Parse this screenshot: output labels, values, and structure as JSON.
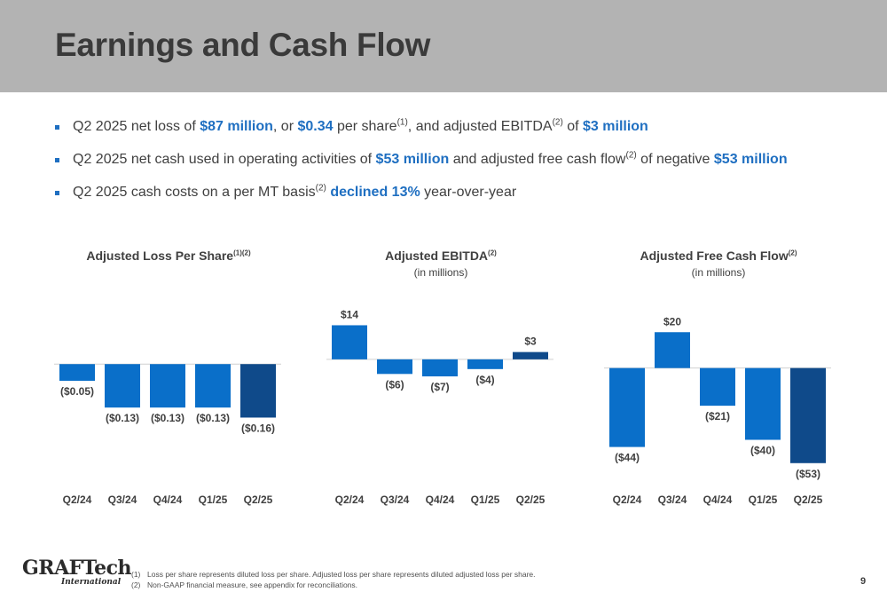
{
  "title": "Earnings and Cash Flow",
  "bullets": [
    {
      "parts": [
        {
          "t": "Q2 2025 net loss of "
        },
        {
          "t": "$87 million",
          "h": true
        },
        {
          "t": ", or "
        },
        {
          "t": "$0.34",
          "h": true
        },
        {
          "t": " per share"
        },
        {
          "t": "(1)",
          "sup": true
        },
        {
          "t": ", and adjusted EBITDA"
        },
        {
          "t": "(2)",
          "sup": true
        },
        {
          "t": " of "
        },
        {
          "t": "$3 million",
          "h": true
        }
      ]
    },
    {
      "parts": [
        {
          "t": "Q2 2025 net cash used in operating activities of "
        },
        {
          "t": "$53 million",
          "h": true
        },
        {
          "t": " and adjusted free cash flow"
        },
        {
          "t": "(2)",
          "sup": true
        },
        {
          "t": " of negative "
        },
        {
          "t": "$53 million",
          "h": true
        }
      ]
    },
    {
      "parts": [
        {
          "t": "Q2 2025 cash costs on a per MT basis"
        },
        {
          "t": "(2)",
          "sup": true
        },
        {
          "t": " "
        },
        {
          "t": "declined 13%",
          "h": true
        },
        {
          "t": " year-over-year"
        }
      ]
    }
  ],
  "colors": {
    "bar": "#0a6fc9",
    "bar_last": "#0f4a8a",
    "highlight": "#1f6fc1",
    "header": "#b3b3b3"
  },
  "chart_data": [
    {
      "type": "bar",
      "title": "Adjusted Loss Per Share",
      "title_sup": "(1)(2)",
      "subtitle": "",
      "categories": [
        "Q2/24",
        "Q3/24",
        "Q4/24",
        "Q1/25",
        "Q2/25"
      ],
      "values": [
        -0.05,
        -0.13,
        -0.13,
        -0.13,
        -0.16
      ],
      "labels": [
        "($0.05)",
        "($0.13)",
        "($0.13)",
        "($0.13)",
        "($0.16)"
      ],
      "ylim": [
        -0.35,
        0.16
      ]
    },
    {
      "type": "bar",
      "title": "Adjusted EBITDA",
      "title_sup": "(2)",
      "subtitle": "(in millions)",
      "categories": [
        "Q2/24",
        "Q3/24",
        "Q4/24",
        "Q1/25",
        "Q2/25"
      ],
      "values": [
        14,
        -6,
        -7,
        -4,
        3
      ],
      "labels": [
        "$14",
        "($6)",
        "($7)",
        "($4)",
        "$3"
      ],
      "ylim": [
        -50,
        20
      ]
    },
    {
      "type": "bar",
      "title": "Adjusted Free Cash Flow",
      "title_sup": "(2)",
      "subtitle": "(in millions)",
      "categories": [
        "Q2/24",
        "Q3/24",
        "Q4/24",
        "Q1/25",
        "Q2/25"
      ],
      "values": [
        -44,
        20,
        -21,
        -40,
        -53
      ],
      "labels": [
        "($44)",
        "$20",
        "($21)",
        "($40)",
        "($53)"
      ],
      "ylim": [
        -63,
        32
      ]
    }
  ],
  "logo": {
    "line1": "GRAFTech",
    "line2": "International"
  },
  "footnotes": [
    {
      "num": "(1)",
      "text": "Loss per share represents diluted loss per share. Adjusted loss per share represents diluted adjusted loss per share."
    },
    {
      "num": "(2)",
      "text": "Non-GAAP financial measure, see appendix for reconciliations."
    }
  ],
  "page_number": "9"
}
